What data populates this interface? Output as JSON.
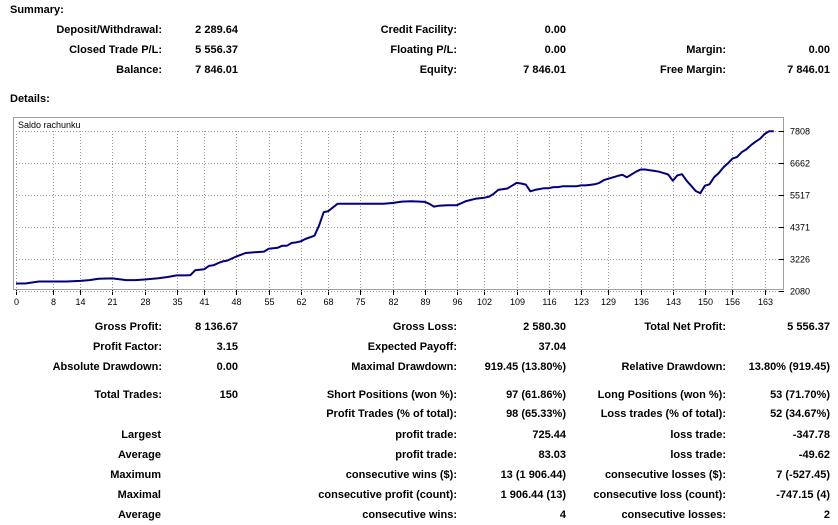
{
  "summary": {
    "title": "Summary:",
    "rows": [
      [
        {
          "label": "Deposit/Withdrawal:",
          "value": "2 289.64"
        },
        {
          "label": "Credit Facility:",
          "value": "0.00"
        },
        {
          "label": "",
          "value": ""
        }
      ],
      [
        {
          "label": "Closed Trade P/L:",
          "value": "5 556.37"
        },
        {
          "label": "Floating P/L:",
          "value": "0.00"
        },
        {
          "label": "Margin:",
          "value": "0.00"
        }
      ],
      [
        {
          "label": "Balance:",
          "value": "7 846.01"
        },
        {
          "label": "Equity:",
          "value": "7 846.01"
        },
        {
          "label": "Free Margin:",
          "value": "7 846.01"
        }
      ]
    ]
  },
  "details": {
    "title": "Details:"
  },
  "chart_data": {
    "type": "line",
    "title": "Saldo rachunku",
    "x_ticks": [
      0,
      8,
      14,
      21,
      28,
      35,
      41,
      48,
      55,
      62,
      68,
      75,
      82,
      89,
      96,
      102,
      109,
      116,
      123,
      129,
      136,
      143,
      150,
      156,
      163
    ],
    "y_ticks": [
      2080,
      3226,
      4371,
      5517,
      6662,
      7808
    ],
    "xlim": [
      0,
      167
    ],
    "ylim": [
      2080,
      7808
    ],
    "grid": true,
    "line_color": "#000080",
    "series": [
      {
        "x": [
          0,
          2,
          5,
          8,
          11,
          14,
          16,
          18,
          21,
          24,
          26,
          28,
          31,
          33,
          35,
          37,
          38,
          39,
          41,
          42,
          43,
          44,
          45,
          46,
          48,
          50,
          52,
          54,
          55,
          57,
          58,
          59,
          60,
          61,
          62,
          63,
          65,
          66,
          67,
          68,
          70,
          75,
          80,
          82,
          84,
          86,
          88,
          89,
          90,
          91,
          92,
          93,
          94,
          96,
          98,
          100,
          102,
          103,
          104,
          105,
          107,
          108,
          109,
          110,
          111,
          112,
          113,
          115,
          116,
          117,
          118,
          119,
          120,
          121,
          122,
          123,
          124,
          125,
          126,
          127,
          128,
          129,
          130,
          131,
          132,
          133,
          135,
          136,
          137,
          138,
          139,
          140,
          141,
          142,
          143,
          144,
          145,
          146,
          147,
          148,
          149,
          150,
          151,
          152,
          153,
          154,
          155,
          156,
          157,
          158,
          159,
          160,
          161,
          162,
          163,
          164,
          165
        ],
        "y": [
          2350,
          2350,
          2420,
          2420,
          2420,
          2440,
          2470,
          2520,
          2530,
          2470,
          2470,
          2490,
          2540,
          2580,
          2640,
          2640,
          2650,
          2820,
          2860,
          2980,
          3000,
          3080,
          3140,
          3170,
          3320,
          3440,
          3470,
          3490,
          3590,
          3630,
          3700,
          3700,
          3800,
          3820,
          3860,
          3940,
          4060,
          4430,
          4900,
          4940,
          5200,
          5200,
          5200,
          5230,
          5280,
          5290,
          5280,
          5270,
          5200,
          5100,
          5130,
          5140,
          5150,
          5150,
          5300,
          5380,
          5420,
          5460,
          5560,
          5700,
          5750,
          5850,
          5950,
          5930,
          5890,
          5650,
          5700,
          5760,
          5760,
          5800,
          5800,
          5830,
          5830,
          5830,
          5830,
          5860,
          5860,
          5880,
          5900,
          5950,
          6050,
          6100,
          6150,
          6200,
          6240,
          6150,
          6350,
          6430,
          6430,
          6400,
          6380,
          6350,
          6300,
          6250,
          6030,
          6220,
          6260,
          6030,
          5850,
          5660,
          5580,
          5850,
          5900,
          6150,
          6300,
          6500,
          6650,
          6820,
          6880,
          7050,
          7150,
          7300,
          7420,
          7530,
          7700,
          7800,
          7800
        ]
      }
    ]
  },
  "stats": {
    "row1": [
      {
        "label": "Gross Profit:",
        "value": "8 136.67"
      },
      {
        "label": "Gross Loss:",
        "value": "2 580.30"
      },
      {
        "label": "Total Net Profit:",
        "value": "5 556.37"
      }
    ],
    "row2": [
      {
        "label": "Profit Factor:",
        "value": "3.15"
      },
      {
        "label": "Expected Payoff:",
        "value": "37.04"
      },
      {
        "label": "",
        "value": ""
      }
    ],
    "row3": [
      {
        "label": "Absolute Drawdown:",
        "value": "0.00"
      },
      {
        "label": "Maximal Drawdown:",
        "value": "919.45 (13.80%)"
      },
      {
        "label": "Relative Drawdown:",
        "value": "13.80% (919.45)"
      }
    ],
    "row4": [
      {
        "label": "Total Trades:",
        "value": "150"
      },
      {
        "label": "Short Positions (won %):",
        "value": "97 (61.86%)"
      },
      {
        "label": "Long Positions (won %):",
        "value": "53 (71.70%)"
      }
    ],
    "row5": [
      {
        "label": "",
        "value": ""
      },
      {
        "label": "Profit Trades (% of total):",
        "value": "98 (65.33%)"
      },
      {
        "label": "Loss trades (% of total):",
        "value": "52 (34.67%)"
      }
    ],
    "row6": [
      {
        "label": "Largest",
        "value": ""
      },
      {
        "label": "profit trade:",
        "value": "725.44"
      },
      {
        "label": "loss trade:",
        "value": "-347.78"
      }
    ],
    "row7": [
      {
        "label": "Average",
        "value": ""
      },
      {
        "label": "profit trade:",
        "value": "83.03"
      },
      {
        "label": "loss trade:",
        "value": "-49.62"
      }
    ],
    "row8": [
      {
        "label": "Maximum",
        "value": ""
      },
      {
        "label": "consecutive wins ($):",
        "value": "13 (1 906.44)"
      },
      {
        "label": "consecutive losses ($):",
        "value": "7 (-527.45)"
      }
    ],
    "row9": [
      {
        "label": "Maximal",
        "value": ""
      },
      {
        "label": "consecutive profit (count):",
        "value": "1 906.44 (13)"
      },
      {
        "label": "consecutive loss (count):",
        "value": "-747.15 (4)"
      }
    ],
    "row10": [
      {
        "label": "Average",
        "value": ""
      },
      {
        "label": "consecutive wins:",
        "value": "4"
      },
      {
        "label": "consecutive losses:",
        "value": "2"
      }
    ]
  }
}
